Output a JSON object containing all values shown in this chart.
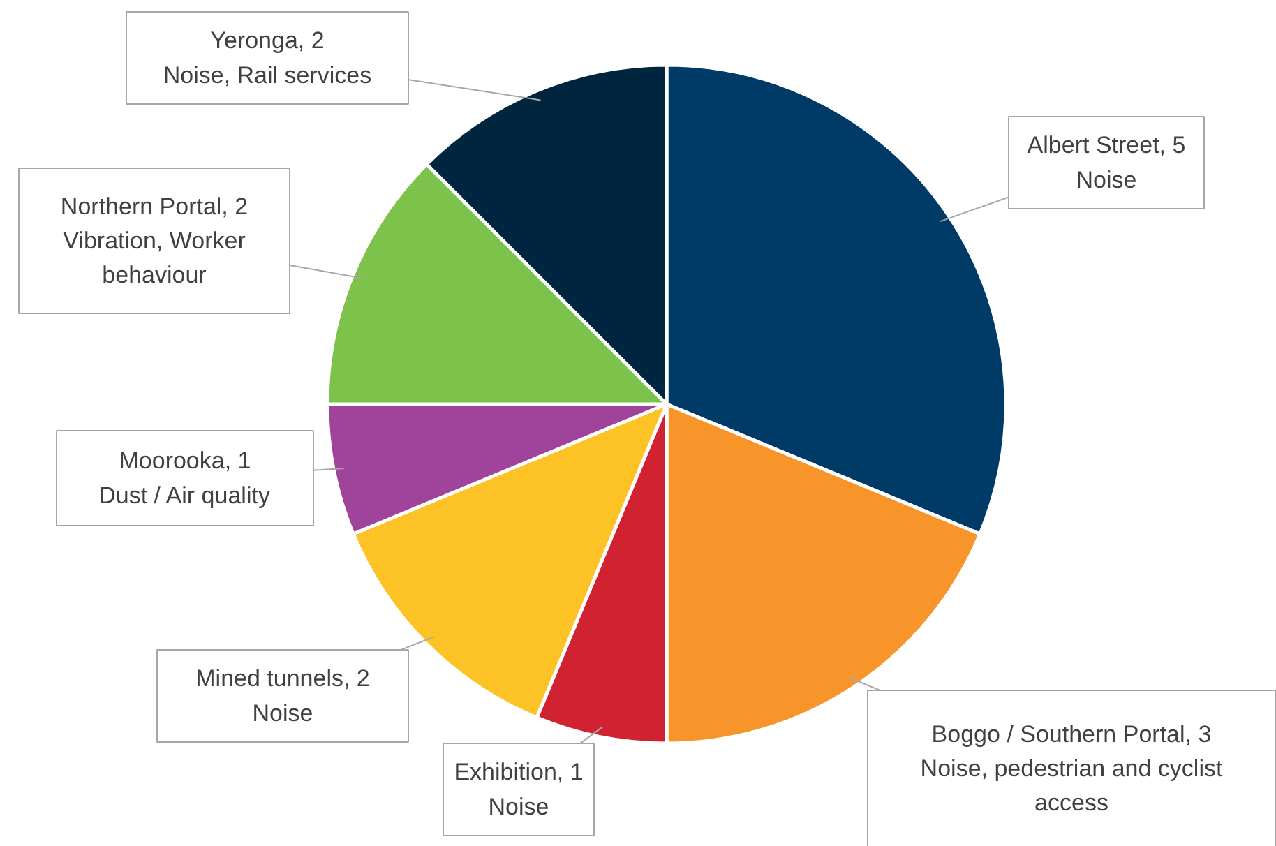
{
  "chart_data": {
    "type": "pie",
    "categories": [
      "Albert Street, 5",
      "Boggo / Southern Portal, 3",
      "Exhibition, 1",
      "Mined tunnels, 2",
      "Moorooka, 1",
      "Northern Portal, 2",
      "Yeronga, 2"
    ],
    "values": [
      5,
      3,
      1,
      2,
      1,
      2,
      2
    ],
    "colors": [
      "#003a66",
      "#f7952a",
      "#d12232",
      "#fcc226",
      "#a0449b",
      "#7dc24b",
      "#00253e"
    ],
    "annotations": [
      "Noise",
      "Noise, pedestrian and cyclist\naccess",
      "Noise",
      "Noise",
      "Dust / Air quality",
      "Vibration, Worker\nbehaviour",
      "Noise, Rail services"
    ]
  }
}
